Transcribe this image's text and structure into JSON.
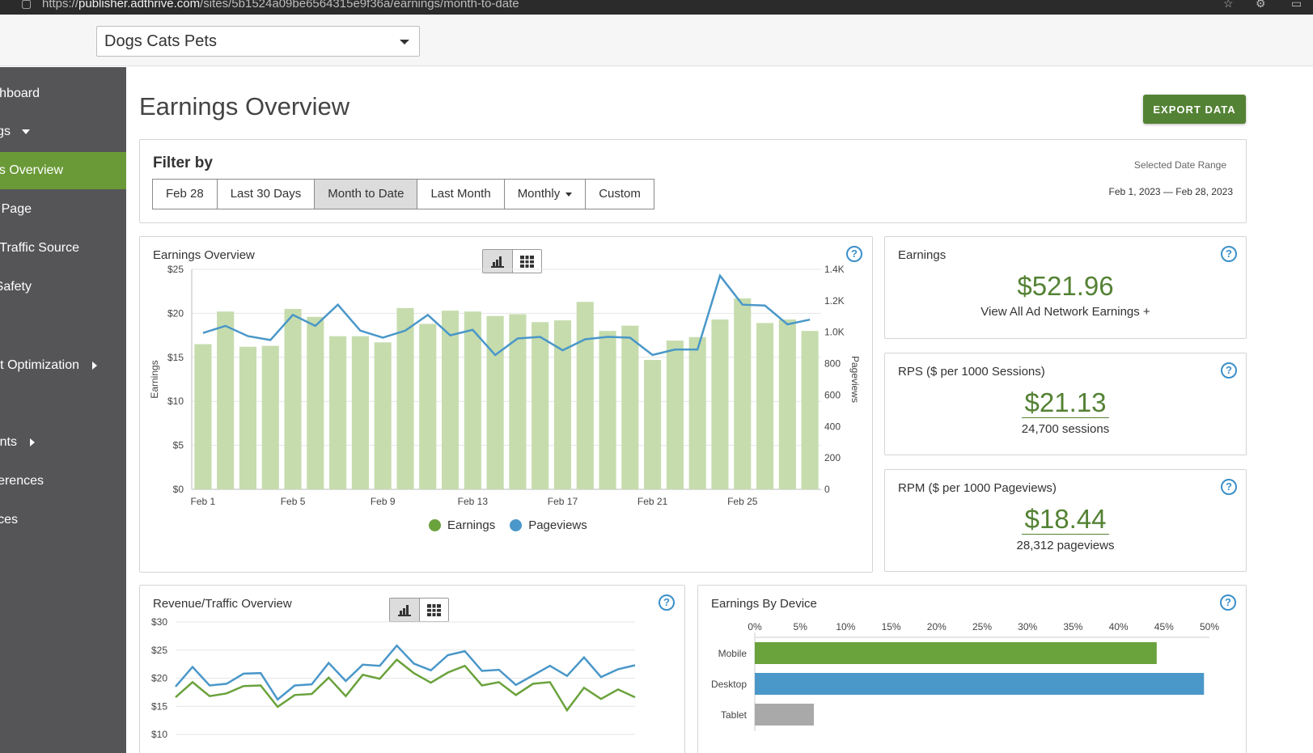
{
  "browser": {
    "url_prefix": "https://",
    "url_host": "publisher.adthrive.com",
    "url_path": "/sites/5b1524a09be6564315e9f36a/earnings/month-to-date"
  },
  "site_selector": {
    "value": "Dogs Cats Pets"
  },
  "sidebar": {
    "items": [
      {
        "label": "hboard"
      },
      {
        "label": "gs"
      },
      {
        "label": "gs Overview"
      },
      {
        "label": "/ Page"
      },
      {
        "label": "/ Traffic Source"
      },
      {
        "label": "Safety"
      },
      {
        "label": "nt Optimization"
      },
      {
        "label": "nts"
      },
      {
        "label": "ferences"
      },
      {
        "label": "ces"
      }
    ]
  },
  "page": {
    "title": "Earnings Overview",
    "export_label": "EXPORT DATA"
  },
  "filter": {
    "title": "Filter by",
    "buttons": [
      "Feb 28",
      "Last 30 Days",
      "Month to Date",
      "Last Month",
      "Monthly",
      "Custom"
    ],
    "active": "Month to Date",
    "range_label": "Selected Date Range",
    "range_value": "Feb 1, 2023 — Feb 28, 2023"
  },
  "stats": {
    "earnings": {
      "title": "Earnings",
      "value": "$521.96",
      "sub": "View All Ad Network Earnings +"
    },
    "rps": {
      "title": "RPS ($ per 1000 Sessions)",
      "value": "$21.13",
      "sub": "24,700 sessions"
    },
    "rpm": {
      "title": "RPM ($ per 1000 Pageviews)",
      "value": "$18.44",
      "sub": "28,312 pageviews"
    }
  },
  "colors": {
    "accent_green": "#548234",
    "bar_green": "#c6dcad",
    "line_blue": "#4a97c9",
    "line_green": "#6aa23c",
    "sidebar": "#555558",
    "help_blue": "#3a8fc9"
  },
  "chart_data": [
    {
      "type": "bar",
      "title": "Earnings Overview",
      "ylabel": "Earnings",
      "y2label": "Pageviews",
      "ylim": [
        0,
        25
      ],
      "y2lim": [
        0,
        1400
      ],
      "yticks": [
        "$0",
        "$5",
        "$10",
        "$15",
        "$20",
        "$25"
      ],
      "y2ticks": [
        "0",
        "200",
        "400",
        "600",
        "800",
        "1.0K",
        "1.2K",
        "1.4K"
      ],
      "xtick_labels": [
        "Feb 1",
        "Feb 5",
        "Feb 9",
        "Feb 13",
        "Feb 17",
        "Feb 21",
        "Feb 25"
      ],
      "legend": [
        "Earnings",
        "Pageviews"
      ],
      "series": [
        {
          "name": "Earnings",
          "values": [
            16.5,
            20.2,
            16.2,
            16.3,
            20.5,
            19.6,
            17.4,
            17.4,
            16.7,
            20.6,
            18.8,
            20.3,
            20.2,
            19.7,
            19.9,
            19.0,
            19.2,
            21.3,
            18.0,
            18.6,
            14.7,
            16.9,
            17.3,
            19.3,
            21.7,
            18.9,
            19.3,
            18.0
          ]
        },
        {
          "name": "Pageviews",
          "values": [
            995,
            1040,
            975,
            950,
            1110,
            1040,
            1175,
            1010,
            965,
            1010,
            1110,
            980,
            1015,
            855,
            960,
            970,
            885,
            955,
            970,
            965,
            855,
            890,
            890,
            1360,
            1175,
            1170,
            1050,
            1080
          ]
        }
      ]
    },
    {
      "type": "line",
      "title": "Revenue/Traffic Overview",
      "ylim": [
        10,
        30
      ],
      "yticks": [
        "$10",
        "$15",
        "$20",
        "$25",
        "$30"
      ],
      "series": [
        {
          "values": [
            18.5,
            22.0,
            18.7,
            19.0,
            20.8,
            20.9,
            16.2,
            18.7,
            18.9,
            22.7,
            19.5,
            22.4,
            22.2,
            25.8,
            22.6,
            21.4,
            24.1,
            24.8,
            21.3,
            21.5,
            18.8,
            20.5,
            22.2,
            20.4,
            23.7,
            20.2,
            21.6,
            22.3
          ]
        },
        {
          "values": [
            16.6,
            19.3,
            16.8,
            17.3,
            18.6,
            18.7,
            14.9,
            17.0,
            17.2,
            20.1,
            16.8,
            20.6,
            19.9,
            23.3,
            20.9,
            19.2,
            21.0,
            22.2,
            18.7,
            19.3,
            17.0,
            19.0,
            19.3,
            14.3,
            18.3,
            16.3,
            18.0,
            16.6
          ]
        }
      ]
    },
    {
      "type": "bar",
      "title": "Earnings By Device",
      "orientation": "horizontal",
      "xlim": [
        0,
        50
      ],
      "xticks": [
        "0%",
        "5%",
        "10%",
        "15%",
        "20%",
        "25%",
        "30%",
        "35%",
        "40%",
        "45%",
        "50%"
      ],
      "categories": [
        "Mobile",
        "Desktop",
        "Tablet"
      ],
      "values": [
        44.2,
        49.4,
        6.5
      ]
    }
  ]
}
